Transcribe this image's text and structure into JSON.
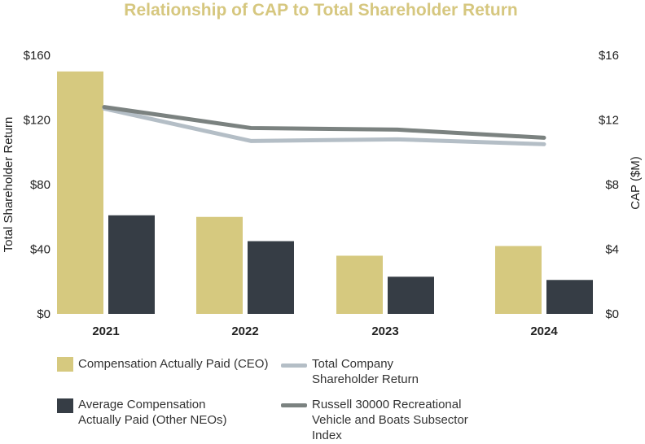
{
  "chart_data": {
    "type": "bar",
    "title": "Relationship of CAP to Total Shareholder Return",
    "categories": [
      "2021",
      "2022",
      "2023",
      "2024"
    ],
    "ylabel_left": "Total Shareholder Return",
    "ylabel_right": "CAP ($M)",
    "left_ticks": [
      "$0",
      "$40",
      "$80",
      "$120",
      "$160"
    ],
    "right_ticks": [
      "$0",
      "$4",
      "$8",
      "$12",
      "$16"
    ],
    "ylim_left": [
      0,
      160
    ],
    "ylim_right": [
      0,
      16
    ],
    "bar_series": [
      {
        "name": "Compensation Actually Paid (CEO)",
        "axis": "right",
        "color": "#d6c97f",
        "values": [
          15.0,
          6.0,
          3.6,
          4.2
        ]
      },
      {
        "name": "Average Compensation Actually Paid (Other NEOs)",
        "axis": "right",
        "color": "#363d45",
        "values": [
          6.1,
          4.5,
          2.3,
          2.1
        ]
      }
    ],
    "line_series": [
      {
        "name": "Total Company Shareholder Return",
        "axis": "left",
        "color": "#b4bec6",
        "values": [
          127,
          107,
          108,
          105
        ]
      },
      {
        "name": "Russell 30000 Recreational Vehicle and Boats Subsector Index",
        "axis": "left",
        "color": "#7b8280",
        "values": [
          128,
          115,
          114,
          109
        ]
      }
    ]
  },
  "legend": {
    "ceo_cap_label": "Compensation Actually Paid (CEO)",
    "neo_cap_label": "Average Compensation Actually Paid (Other NEOs)",
    "tsr_label": "Total Company Shareholder Return",
    "index_label": "Russell 30000 Recreational Vehicle and Boats Subsector Index"
  }
}
